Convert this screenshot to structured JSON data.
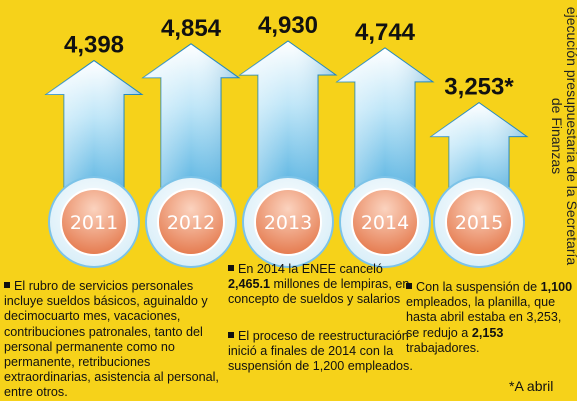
{
  "chart_data": {
    "type": "bar",
    "categories": [
      "2011",
      "2012",
      "2013",
      "2014",
      "2015"
    ],
    "values": [
      4398,
      4854,
      4930,
      4744,
      3253
    ],
    "value_labels": [
      "4,398",
      "4,854",
      "4,930",
      "4,744",
      "3,253*"
    ],
    "title": "",
    "xlabel": "",
    "ylabel": "",
    "ylim": [
      0,
      5000
    ],
    "grid": false,
    "legend": "none"
  },
  "colors": {
    "background": "#f6d21a",
    "arrow_top": "#ffffff",
    "arrow_bottom": "#3aa6dc",
    "badge": "#f09a72",
    "text": "#111111"
  },
  "source": "Fuente: Informes de evaluación y ejecución presupuestaria de la Secretaría de Finanzas",
  "notes": {
    "n1": "El rubro de servicios personales incluye sueldos básicos, aguinaldo y decimocuarto mes, vacaciones, contribuciones patronales, tanto del personal permanente como no permanente, retribuciones extraordinarias, asistencia al personal, entre otros.",
    "n2_pre": "En 2014 la ENEE canceló ",
    "n2_bold": "2,465.1",
    "n2_post": " millones de lempiras, en concepto de sueldos y salarios",
    "n3": "El proceso de reestructuración inició a finales de 2014 con la suspensión de 1,200 empleados.",
    "n4_pre": "Con la suspensión de ",
    "n4_bold1": "1,100",
    "n4_mid": " empleados, la planilla, que hasta abril estaba en 3,253, se redujo a ",
    "n4_bold2": "2,153",
    "n4_post": " trabajadores."
  },
  "footnote": "*A abril"
}
